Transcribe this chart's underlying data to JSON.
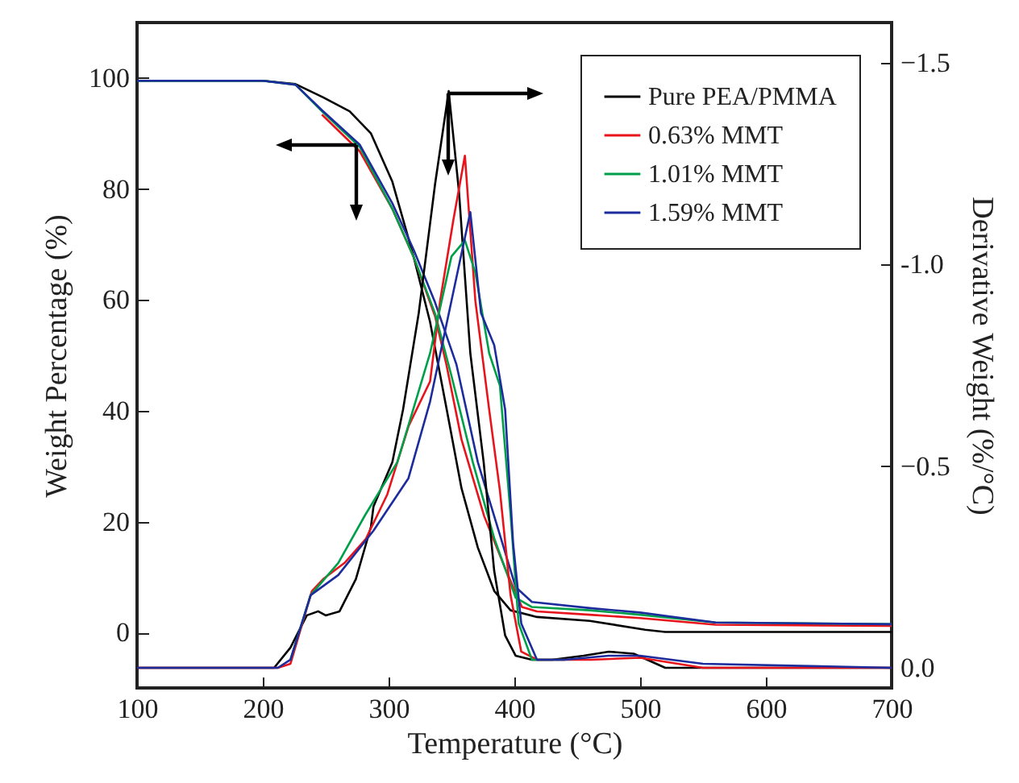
{
  "chart_data": {
    "type": "line",
    "xlabel": "Temperature (°C)",
    "ylabel": "Weight Percentage (%)",
    "y2label": "Derivative Weight (%/°C)",
    "xlim": [
      100,
      700
    ],
    "xticks": [
      100,
      200,
      300,
      400,
      500,
      600,
      700
    ],
    "ylim": [
      -10,
      110
    ],
    "yticks": [
      0,
      20,
      40,
      60,
      80,
      100
    ],
    "y2lim": [
      0.05,
      -1.6
    ],
    "y2ticks": [
      {
        "value": 0,
        "label": "0.0"
      },
      -0.5,
      {
        "value": -1,
        "label": "-1.0"
      },
      -1.5
    ],
    "legend": "top right",
    "grid": false,
    "marker": "none",
    "line_style": "solid",
    "series": [
      {
        "name": "Pure PEA/PMMA",
        "color": "#000000",
        "x": [
          100,
          200,
          226,
          248,
          269,
          286,
          303,
          320,
          333,
          346,
          358,
          371,
          384,
          397,
          418,
          460,
          504,
          520,
          600,
          700
        ],
        "values": [
          99.5,
          99.5,
          98.9,
          96.5,
          94,
          90,
          81.3,
          67.7,
          56,
          40.5,
          26,
          15.3,
          7.5,
          4,
          2.8,
          2.1,
          0.5,
          0.1,
          0.1,
          0.1
        ]
      },
      {
        "name": "0.63% MMT",
        "color": "#e8141c",
        "x": [
          247,
          277,
          303,
          320,
          337,
          346,
          358,
          376,
          393,
          406,
          418,
          460,
          500,
          560,
          700
        ],
        "values": [
          93.4,
          86.8,
          76.4,
          67.7,
          57,
          48.3,
          34.8,
          21,
          11.4,
          4.6,
          3.8,
          3.2,
          2.6,
          1.4,
          1.2
        ]
      },
      {
        "name": "1.01% MMT",
        "color": "#00a04a",
        "x": [
          100,
          200,
          226,
          247,
          277,
          303,
          320,
          337,
          350,
          367,
          384,
          401,
          414,
          460,
          500,
          560,
          700
        ],
        "values": [
          99.5,
          99.5,
          98.8,
          94,
          87.6,
          76.4,
          67.7,
          57.5,
          46.3,
          30.7,
          17,
          6.3,
          4.6,
          4,
          3.2,
          1.8,
          1.5
        ]
      },
      {
        "name": "1.59% MMT",
        "color": "#1c2c9c",
        "x": [
          100,
          200,
          226,
          247,
          277,
          303,
          320,
          337,
          354,
          371,
          388,
          401,
          414,
          460,
          500,
          560,
          700
        ],
        "values": [
          99.5,
          99.5,
          98.8,
          94.2,
          88,
          77.4,
          69,
          59.5,
          48.3,
          30.7,
          18,
          8.2,
          5.5,
          4.4,
          3.6,
          1.8,
          1.5
        ]
      },
      {
        "color": "#000000",
        "axis": "y2",
        "x": [
          100,
          200,
          209,
          222,
          235,
          244,
          250,
          261,
          274,
          286,
          288,
          303,
          311.5,
          324,
          337,
          347.8,
          356,
          365,
          375.6,
          384,
          392.7,
          401,
          414,
          430,
          455,
          475,
          495,
          520,
          600,
          700
        ],
        "values": [
          0,
          0,
          0,
          -0.05,
          -0.13,
          -0.14,
          -0.13,
          -0.14,
          -0.22,
          -0.35,
          -0.4,
          -0.51,
          -0.64,
          -0.88,
          -1.2,
          -1.43,
          -1.18,
          -0.78,
          -0.51,
          -0.24,
          -0.08,
          -0.03,
          -0.02,
          -0.02,
          -0.03,
          -0.04,
          -0.035,
          0,
          0,
          0
        ]
      },
      {
        "color": "#e8141c",
        "axis": "y2",
        "x": [
          100,
          200,
          212,
          222,
          239,
          248,
          265,
          282,
          299,
          316,
          333,
          341,
          351.5,
          360.7,
          369,
          380,
          388.5,
          397,
          405.5,
          418,
          440,
          461,
          500,
          550,
          700
        ],
        "values": [
          0,
          0,
          0,
          -0.01,
          -0.19,
          -0.22,
          -0.26,
          -0.32,
          -0.43,
          -0.6,
          -0.71,
          -0.91,
          -1.11,
          -1.27,
          -0.91,
          -0.64,
          -0.44,
          -0.18,
          -0.04,
          -0.02,
          -0.02,
          -0.02,
          -0.025,
          0,
          0
        ]
      },
      {
        "color": "#00a04a",
        "axis": "y2",
        "x": [
          222,
          238,
          260,
          281.6,
          307,
          333,
          350,
          360.7,
          369,
          380,
          388.5,
          397,
          403.4,
          414,
          440
        ],
        "values": [
          -0.02,
          -0.18,
          -0.26,
          -0.38,
          -0.51,
          -0.78,
          -1.02,
          -1.06,
          -0.98,
          -0.78,
          -0.7,
          -0.38,
          -0.11,
          -0.02,
          -0.02
        ]
      },
      {
        "color": "#1c2c9c",
        "axis": "y2",
        "x": [
          100,
          200,
          212,
          222,
          238,
          260,
          288,
          315.8,
          333,
          350,
          365,
          373.5,
          384,
          392.7,
          399,
          405.5,
          418,
          440,
          475,
          500,
          550,
          700
        ],
        "values": [
          0,
          0,
          0,
          -0.02,
          -0.18,
          -0.23,
          -0.34,
          -0.47,
          -0.66,
          -0.91,
          -1.13,
          -0.88,
          -0.8,
          -0.64,
          -0.31,
          -0.11,
          -0.02,
          -0.02,
          -0.03,
          -0.03,
          -0.01,
          0
        ]
      }
    ]
  }
}
